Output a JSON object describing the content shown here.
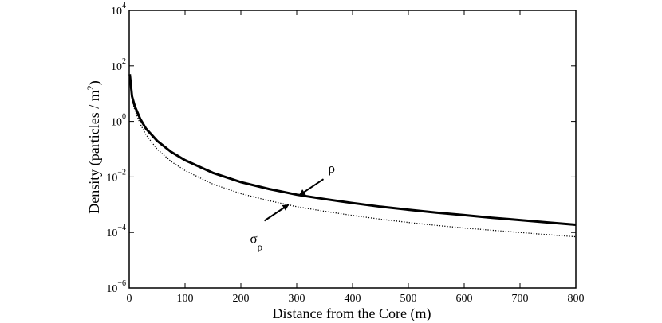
{
  "chart_data": {
    "type": "line",
    "title": "",
    "xlabel": "Distance from the Core (m)",
    "ylabel_parts": {
      "main": "Density (particles / m",
      "sup": "2",
      "end": ")"
    },
    "xlim": [
      0,
      800
    ],
    "ylim_exponent": [
      -6,
      4
    ],
    "y_scale": "log",
    "x_ticks": [
      0,
      100,
      200,
      300,
      400,
      500,
      600,
      700,
      800
    ],
    "x_tick_labels": [
      "0",
      "100",
      "200",
      "300",
      "400",
      "500",
      "600",
      "700",
      "800"
    ],
    "y_tick_exponents": [
      -6,
      -4,
      -2,
      0,
      2,
      4
    ],
    "y_tick_base": "10",
    "y_tick_exp_labels": [
      "−6",
      "−4",
      "−2",
      "0",
      "2",
      "4"
    ],
    "grid": false,
    "series": [
      {
        "name": "ρ",
        "style": "solid",
        "x": [
          1,
          5,
          10,
          20,
          30,
          50,
          75,
          100,
          150,
          200,
          250,
          300,
          350,
          400,
          450,
          500,
          550,
          600,
          650,
          700,
          750,
          800
        ],
        "y": [
          50,
          8,
          3.5,
          1.2,
          0.55,
          0.2,
          0.08,
          0.04,
          0.014,
          0.0065,
          0.0037,
          0.0023,
          0.0016,
          0.00115,
          0.00085,
          0.00066,
          0.00052,
          0.00042,
          0.00034,
          0.00028,
          0.00023,
          0.00019
        ]
      },
      {
        "name": "σρ",
        "style": "dotted",
        "x": [
          1,
          5,
          10,
          20,
          30,
          50,
          75,
          100,
          150,
          200,
          250,
          300,
          350,
          400,
          450,
          500,
          550,
          600,
          650,
          700,
          750,
          800
        ],
        "y": [
          45,
          6.5,
          2.5,
          0.8,
          0.33,
          0.1,
          0.036,
          0.017,
          0.0055,
          0.0025,
          0.0014,
          0.00085,
          0.00058,
          0.00041,
          0.0003,
          0.00023,
          0.00018,
          0.000145,
          0.00012,
          0.0001,
          8.3e-05,
          7e-05
        ]
      }
    ],
    "annotations": [
      {
        "text": "ρ",
        "sub": "",
        "series": 0,
        "arrow_to_x": 305
      },
      {
        "text": "σ",
        "sub": "ρ",
        "series": 1,
        "arrow_to_x": 285
      }
    ]
  }
}
